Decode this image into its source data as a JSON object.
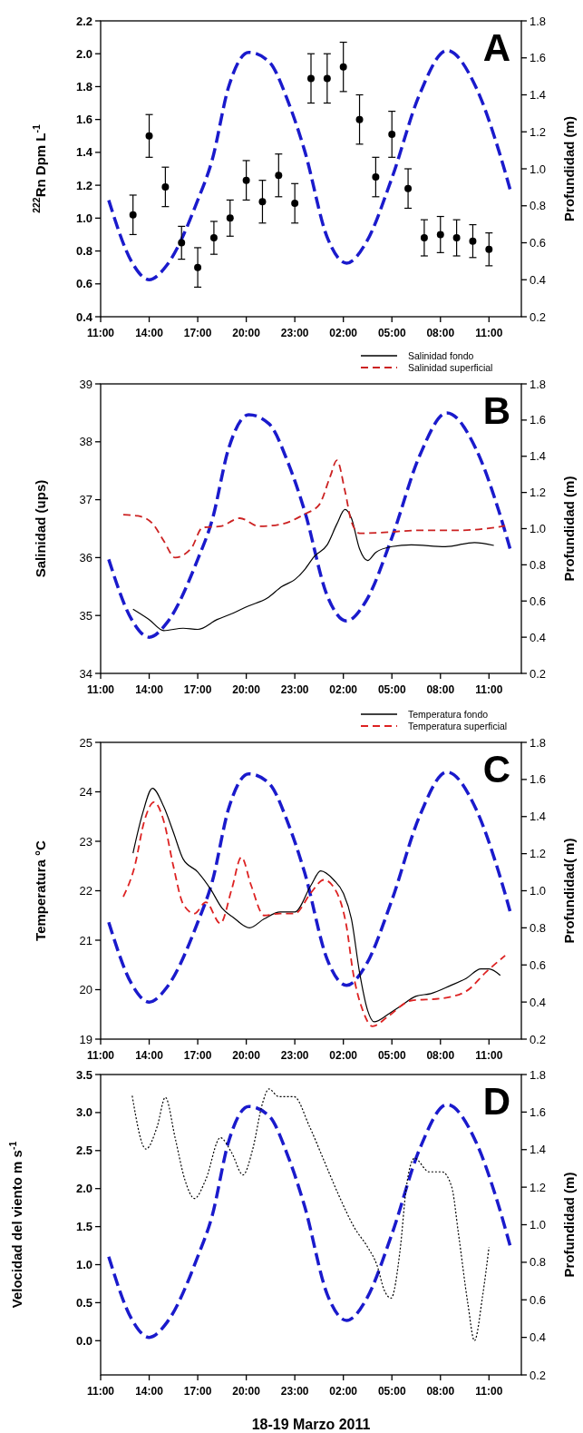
{
  "chart_data": [
    {
      "type": "scatter",
      "title": "A",
      "ylabel": "$^{222}$Rn Dpm L$^{-1}$",
      "y2label": "Profundidad (m)",
      "xlim": [
        "2011-03-18T11:00",
        "2011-03-19T13:00"
      ],
      "xticks": [
        {
          "value": "2011-03-18T11:00",
          "label": "11:00"
        },
        {
          "value": "2011-03-18T14:00",
          "label": "14:00"
        },
        {
          "value": "2011-03-18T17:00",
          "label": "17:00"
        },
        {
          "value": "2011-03-18T20:00",
          "label": "20:00"
        },
        {
          "value": "2011-03-18T23:00",
          "label": "23:00"
        },
        {
          "value": "2011-03-19T02:00",
          "label": "02:00"
        },
        {
          "value": "2011-03-19T05:00",
          "label": "05:00"
        },
        {
          "value": "2011-03-19T08:00",
          "label": "08:00"
        },
        {
          "value": "2011-03-19T11:00",
          "label": "11:00"
        }
      ],
      "ylim": [
        0.4,
        2.2
      ],
      "yticks": [
        {
          "value": 0.4,
          "label": "0.4"
        },
        {
          "value": 0.6,
          "label": "0.6"
        },
        {
          "value": 0.8,
          "label": "0.8"
        },
        {
          "value": 1,
          "label": "1.0"
        },
        {
          "value": 1.2,
          "label": "1.2"
        },
        {
          "value": 1.4,
          "label": "1.4"
        },
        {
          "value": 1.6,
          "label": "1.6"
        },
        {
          "value": 1.8,
          "label": "1.8"
        },
        {
          "value": 2,
          "label": "2.0"
        },
        {
          "value": 2.2,
          "label": "2.2"
        }
      ],
      "y2lim": [
        0.2,
        1.8
      ],
      "y2ticks": [
        {
          "value": 0.2,
          "label": "0.2"
        },
        {
          "value": 0.4,
          "label": "0.4"
        },
        {
          "value": 0.6,
          "label": "0.6"
        },
        {
          "value": 0.8,
          "label": "0.8"
        },
        {
          "value": 1,
          "label": "1.0"
        },
        {
          "value": 1.2,
          "label": "1.2"
        },
        {
          "value": 1.4,
          "label": "1.4"
        },
        {
          "value": 1.6,
          "label": "1.6"
        },
        {
          "value": 1.8,
          "label": "1.8"
        }
      ],
      "series": [
        {
          "color": "#000000",
          "marker": "circle",
          "x": [
            "2011-03-18T13:00",
            "2011-03-18T14:00",
            "2011-03-18T15:00",
            "2011-03-18T16:00",
            "2011-03-18T17:00",
            "2011-03-18T18:00",
            "2011-03-18T19:00",
            "2011-03-18T20:00",
            "2011-03-18T21:00",
            "2011-03-18T22:00",
            "2011-03-18T23:00",
            "2011-03-19T00:00",
            "2011-03-19T01:00",
            "2011-03-19T02:00",
            "2011-03-19T03:00",
            "2011-03-19T04:00",
            "2011-03-19T05:00",
            "2011-03-19T06:00",
            "2011-03-19T07:00",
            "2011-03-19T08:00",
            "2011-03-19T09:00",
            "2011-03-19T10:00",
            "2011-03-19T11:00"
          ],
          "values": [
            1.02,
            1.5,
            1.19,
            0.85,
            0.7,
            0.88,
            1.0,
            1.23,
            1.1,
            1.26,
            1.09,
            1.85,
            1.85,
            1.92,
            1.6,
            1.25,
            1.51,
            1.18,
            0.88,
            0.9,
            0.88,
            0.86,
            0.81
          ],
          "errors": [
            0.12,
            0.13,
            0.12,
            0.1,
            0.12,
            0.1,
            0.11,
            0.12,
            0.13,
            0.13,
            0.12,
            0.15,
            0.15,
            0.15,
            0.15,
            0.12,
            0.14,
            0.12,
            0.11,
            0.11,
            0.11,
            0.1,
            0.1
          ]
        },
        {
          "type": "line",
          "axis": "y2",
          "color": "#1a1acc",
          "line_style": "dashed",
          "x": [
            "2011-03-18T11:30",
            "2011-03-18T12:54",
            "2011-03-18T14:00",
            "2011-03-18T15:06",
            "2011-03-18T17:00",
            "2011-03-18T17:54",
            "2011-03-18T18:54",
            "2011-03-18T20:09",
            "2011-03-18T21:24",
            "2011-03-18T22:36",
            "2011-03-18T23:36",
            "2011-03-19T01:00",
            "2011-03-19T02:12",
            "2011-03-19T03:24",
            "2011-03-19T05:00",
            "2011-03-19T06:42",
            "2011-03-19T08:24",
            "2011-03-19T10:12",
            "2011-03-19T11:36",
            "2011-03-19T12:18"
          ],
          "values": [
            0.83,
            0.5,
            0.4,
            0.48,
            0.83,
            1.05,
            1.44,
            1.63,
            1.58,
            1.36,
            1.1,
            0.63,
            0.49,
            0.6,
            0.95,
            1.4,
            1.64,
            1.44,
            1.1,
            0.89
          ]
        }
      ]
    },
    {
      "type": "line",
      "title": "B",
      "ylabel": "Salinidad (ups)",
      "y2label": "Profundidad (m)",
      "xlim": [
        "2011-03-18T11:00",
        "2011-03-19T13:00"
      ],
      "legend": "top right",
      "xticks": [
        {
          "value": "2011-03-18T11:00",
          "label": "11:00"
        },
        {
          "value": "2011-03-18T14:00",
          "label": "14:00"
        },
        {
          "value": "2011-03-18T17:00",
          "label": "17:00"
        },
        {
          "value": "2011-03-18T20:00",
          "label": "20:00"
        },
        {
          "value": "2011-03-18T23:00",
          "label": "23:00"
        },
        {
          "value": "2011-03-19T02:00",
          "label": "02:00"
        },
        {
          "value": "2011-03-19T05:00",
          "label": "05:00"
        },
        {
          "value": "2011-03-19T08:00",
          "label": "08:00"
        },
        {
          "value": "2011-03-19T11:00",
          "label": "11:00"
        }
      ],
      "ylim": [
        34,
        39
      ],
      "yticks": [
        34,
        35,
        36,
        37,
        38,
        39
      ],
      "y2lim": [
        0.2,
        1.8
      ],
      "y2ticks": [
        {
          "value": 0.2,
          "label": "0.2"
        },
        {
          "value": 0.4,
          "label": "0.4"
        },
        {
          "value": 0.6,
          "label": "0.6"
        },
        {
          "value": 0.8,
          "label": "0.8"
        },
        {
          "value": 1,
          "label": "1.0"
        },
        {
          "value": 1.2,
          "label": "1.2"
        },
        {
          "value": 1.4,
          "label": "1.4"
        },
        {
          "value": 1.6,
          "label": "1.6"
        },
        {
          "value": 1.8,
          "label": "1.8"
        }
      ],
      "series": [
        {
          "name": "Salinidad fondo",
          "color": "#000000",
          "line_style": "solid",
          "x": [
            "2011-03-18T13:00",
            "2011-03-18T14:00",
            "2011-03-18T14:54",
            "2011-03-18T16:06",
            "2011-03-18T17:00",
            "2011-03-18T18:12",
            "2011-03-18T19:06",
            "2011-03-18T20:06",
            "2011-03-18T21:18",
            "2011-03-18T22:12",
            "2011-03-18T23:00",
            "2011-03-18T23:36",
            "2011-03-19T00:12",
            "2011-03-19T01:00",
            "2011-03-19T01:36",
            "2011-03-19T02:06",
            "2011-03-19T02:30",
            "2011-03-19T03:00",
            "2011-03-19T03:30",
            "2011-03-19T04:00",
            "2011-03-19T05:00",
            "2011-03-19T06:12",
            "2011-03-19T08:18",
            "2011-03-19T10:06",
            "2011-03-19T11:18"
          ],
          "values": [
            35.11,
            34.93,
            34.74,
            34.78,
            34.76,
            34.93,
            35.03,
            35.16,
            35.3,
            35.5,
            35.62,
            35.79,
            36.02,
            36.22,
            36.58,
            36.83,
            36.68,
            36.15,
            35.95,
            36.09,
            36.19,
            36.22,
            36.19,
            36.26,
            36.21
          ]
        },
        {
          "name": "Salinidad superficial",
          "color": "#cc2222",
          "line_style": "dashed",
          "x": [
            "2011-03-18T12:24",
            "2011-03-18T13:18",
            "2011-03-18T14:12",
            "2011-03-18T14:54",
            "2011-03-18T15:36",
            "2011-03-18T16:36",
            "2011-03-18T17:18",
            "2011-03-18T18:24",
            "2011-03-18T19:36",
            "2011-03-18T20:48",
            "2011-03-18T22:12",
            "2011-03-18T23:36",
            "2011-03-19T00:30",
            "2011-03-19T01:12",
            "2011-03-19T01:36",
            "2011-03-19T02:06",
            "2011-03-19T02:30",
            "2011-03-19T03:00",
            "2011-03-19T04:18",
            "2011-03-19T06:36",
            "2011-03-19T09:00",
            "2011-03-19T10:48",
            "2011-03-19T12:00"
          ],
          "values": [
            36.74,
            36.72,
            36.59,
            36.29,
            36.0,
            36.16,
            36.52,
            36.54,
            36.68,
            36.54,
            36.58,
            36.75,
            36.91,
            37.41,
            37.68,
            37.15,
            36.62,
            36.42,
            36.43,
            36.47,
            36.47,
            36.5,
            36.55
          ]
        },
        {
          "axis": "y2",
          "color": "#1a1acc",
          "line_style": "dashed",
          "x": [
            "2011-03-18T11:30",
            "2011-03-18T12:54",
            "2011-03-18T14:00",
            "2011-03-18T15:06",
            "2011-03-18T17:00",
            "2011-03-18T17:54",
            "2011-03-18T18:54",
            "2011-03-18T20:09",
            "2011-03-18T21:24",
            "2011-03-18T22:36",
            "2011-03-18T23:36",
            "2011-03-19T01:00",
            "2011-03-19T02:12",
            "2011-03-19T03:24",
            "2011-03-19T05:00",
            "2011-03-19T06:42",
            "2011-03-19T08:24",
            "2011-03-19T10:12",
            "2011-03-19T11:36",
            "2011-03-19T12:18"
          ],
          "values": [
            0.83,
            0.5,
            0.4,
            0.48,
            0.83,
            1.05,
            1.44,
            1.63,
            1.58,
            1.36,
            1.1,
            0.63,
            0.49,
            0.6,
            0.95,
            1.4,
            1.64,
            1.44,
            1.1,
            0.89
          ]
        }
      ]
    },
    {
      "type": "line",
      "title": "C",
      "ylabel": "Temperatura °C",
      "y2label": "Profundidad( m)",
      "xlim": [
        "2011-03-18T11:00",
        "2011-03-19T13:00"
      ],
      "legend": "top right",
      "xticks": [
        {
          "value": "2011-03-18T11:00",
          "label": "11:00"
        },
        {
          "value": "2011-03-18T14:00",
          "label": "14:00"
        },
        {
          "value": "2011-03-18T17:00",
          "label": "17:00"
        },
        {
          "value": "2011-03-18T20:00",
          "label": "20:00"
        },
        {
          "value": "2011-03-18T23:00",
          "label": "23:00"
        },
        {
          "value": "2011-03-19T02:00",
          "label": "02:00"
        },
        {
          "value": "2011-03-19T05:00",
          "label": "05:00"
        },
        {
          "value": "2011-03-19T08:00",
          "label": "08:00"
        },
        {
          "value": "2011-03-19T11:00",
          "label": "11:00"
        }
      ],
      "ylim": [
        19,
        25
      ],
      "yticks": [
        19,
        20,
        21,
        22,
        23,
        24,
        25
      ],
      "y2lim": [
        0.2,
        1.8
      ],
      "y2ticks": [
        {
          "value": 0.2,
          "label": "0.2"
        },
        {
          "value": 0.4,
          "label": "0.4"
        },
        {
          "value": 0.6,
          "label": "0.6"
        },
        {
          "value": 0.8,
          "label": "0.8"
        },
        {
          "value": 1,
          "label": "1.0"
        },
        {
          "value": 1.2,
          "label": "1.2"
        },
        {
          "value": 1.4,
          "label": "1.4"
        },
        {
          "value": 1.6,
          "label": "1.6"
        },
        {
          "value": 1.8,
          "label": "1.8"
        }
      ],
      "series": [
        {
          "name": "Temperatura fondo",
          "color": "#000000",
          "line_style": "solid",
          "x": [
            "2011-03-18T13:00",
            "2011-03-18T13:36",
            "2011-03-18T14:12",
            "2011-03-18T14:54",
            "2011-03-18T15:30",
            "2011-03-18T16:06",
            "2011-03-18T17:00",
            "2011-03-18T17:48",
            "2011-03-18T18:30",
            "2011-03-18T19:12",
            "2011-03-18T20:12",
            "2011-03-18T21:06",
            "2011-03-18T22:06",
            "2011-03-18T23:00",
            "2011-03-19T00:00",
            "2011-03-19T00:36",
            "2011-03-19T01:24",
            "2011-03-19T02:00",
            "2011-03-19T02:30",
            "2011-03-19T03:00",
            "2011-03-19T03:30",
            "2011-03-19T03:54",
            "2011-03-19T04:48",
            "2011-03-19T05:30",
            "2011-03-19T06:30",
            "2011-03-19T07:24",
            "2011-03-19T08:36",
            "2011-03-19T09:36",
            "2011-03-19T10:30",
            "2011-03-19T11:00",
            "2011-03-19T11:42"
          ],
          "values": [
            22.76,
            23.57,
            24.07,
            23.7,
            23.18,
            22.64,
            22.38,
            22.03,
            21.65,
            21.46,
            21.25,
            21.43,
            21.57,
            21.57,
            22.11,
            22.4,
            22.22,
            21.95,
            21.43,
            20.35,
            19.58,
            19.35,
            19.51,
            19.66,
            19.87,
            19.92,
            20.08,
            20.23,
            20.42,
            20.42,
            20.29
          ]
        },
        {
          "name": "Temperatura superficial",
          "color": "#dd2222",
          "line_style": "dashed",
          "x": [
            "2011-03-18T12:24",
            "2011-03-18T13:06",
            "2011-03-18T13:42",
            "2011-03-18T14:18",
            "2011-03-18T14:54",
            "2011-03-18T15:30",
            "2011-03-18T16:06",
            "2011-03-18T16:48",
            "2011-03-18T17:30",
            "2011-03-18T18:24",
            "2011-03-18T19:06",
            "2011-03-18T19:42",
            "2011-03-18T20:18",
            "2011-03-18T21:06",
            "2011-03-18T22:06",
            "2011-03-18T23:00",
            "2011-03-19T00:00",
            "2011-03-19T00:48",
            "2011-03-19T01:36",
            "2011-03-19T02:12",
            "2011-03-19T02:36",
            "2011-03-19T03:12",
            "2011-03-19T03:48",
            "2011-03-19T04:48",
            "2011-03-19T06:12",
            "2011-03-19T08:00",
            "2011-03-19T09:36",
            "2011-03-19T10:48",
            "2011-03-19T12:00"
          ],
          "values": [
            21.88,
            22.49,
            23.41,
            23.79,
            23.41,
            22.49,
            21.73,
            21.54,
            21.77,
            21.34,
            22.03,
            22.68,
            22.11,
            21.5,
            21.54,
            21.54,
            21.96,
            22.22,
            21.96,
            21.27,
            20.35,
            19.58,
            19.26,
            19.47,
            19.78,
            19.82,
            19.97,
            20.35,
            20.69
          ]
        },
        {
          "axis": "y2",
          "color": "#1a1acc",
          "line_style": "dashed",
          "x": [
            "2011-03-18T11:30",
            "2011-03-18T12:54",
            "2011-03-18T14:00",
            "2011-03-18T15:06",
            "2011-03-18T17:00",
            "2011-03-18T17:54",
            "2011-03-18T18:54",
            "2011-03-18T20:09",
            "2011-03-18T21:24",
            "2011-03-18T22:36",
            "2011-03-18T23:36",
            "2011-03-19T01:00",
            "2011-03-19T02:12",
            "2011-03-19T03:24",
            "2011-03-19T05:00",
            "2011-03-19T06:42",
            "2011-03-19T08:24",
            "2011-03-19T10:12",
            "2011-03-19T11:36",
            "2011-03-19T12:18"
          ],
          "values": [
            0.83,
            0.5,
            0.4,
            0.48,
            0.83,
            1.05,
            1.44,
            1.63,
            1.58,
            1.36,
            1.1,
            0.63,
            0.49,
            0.6,
            0.95,
            1.4,
            1.64,
            1.44,
            1.1,
            0.89
          ]
        }
      ]
    },
    {
      "type": "line",
      "title": "D",
      "ylabel": "Velocidad del viento  m s$^{-1}$",
      "y2label": "Profundidad  (m)",
      "xlabel": "18-19 Marzo 2011",
      "xlim": [
        "2011-03-18T11:00",
        "2011-03-19T13:00"
      ],
      "xticks": [
        {
          "value": "2011-03-18T11:00",
          "label": "11:00"
        },
        {
          "value": "2011-03-18T14:00",
          "label": "14:00"
        },
        {
          "value": "2011-03-18T17:00",
          "label": "17:00"
        },
        {
          "value": "2011-03-18T20:00",
          "label": "20:00"
        },
        {
          "value": "2011-03-18T23:00",
          "label": "23:00"
        },
        {
          "value": "2011-03-19T02:00",
          "label": "02:00"
        },
        {
          "value": "2011-03-19T05:00",
          "label": "05:00"
        },
        {
          "value": "2011-03-19T08:00",
          "label": "08:00"
        },
        {
          "value": "2011-03-19T11:00",
          "label": "11:00"
        }
      ],
      "ylim": [
        -0.45,
        3.5
      ],
      "yticks": [
        {
          "value": 0,
          "label": "0.0"
        },
        {
          "value": 0.5,
          "label": "0.5"
        },
        {
          "value": 1,
          "label": "1.0"
        },
        {
          "value": 1.5,
          "label": "1.5"
        },
        {
          "value": 2,
          "label": "2.0"
        },
        {
          "value": 2.5,
          "label": "2.5"
        },
        {
          "value": 3,
          "label": "3.0"
        },
        {
          "value": 3.5,
          "label": "3.5"
        }
      ],
      "y2lim": [
        0.2,
        1.8
      ],
      "y2ticks": [
        {
          "value": 0.2,
          "label": "0.2"
        },
        {
          "value": 0.4,
          "label": "0.4"
        },
        {
          "value": 0.6,
          "label": "0.6"
        },
        {
          "value": 0.8,
          "label": "0.8"
        },
        {
          "value": 1,
          "label": "1.0"
        },
        {
          "value": 1.2,
          "label": "1.2"
        },
        {
          "value": 1.4,
          "label": "1.4"
        },
        {
          "value": 1.6,
          "label": "1.6"
        },
        {
          "value": 1.8,
          "label": "1.8"
        }
      ],
      "series": [
        {
          "color": "#000000",
          "line_style": "dotted",
          "x": [
            "2011-03-18T12:57",
            "2011-03-18T13:48",
            "2011-03-18T14:30",
            "2011-03-18T15:00",
            "2011-03-18T15:36",
            "2011-03-18T16:12",
            "2011-03-18T16:48",
            "2011-03-18T17:30",
            "2011-03-18T18:24",
            "2011-03-18T19:06",
            "2011-03-18T19:48",
            "2011-03-18T20:24",
            "2011-03-18T21:00",
            "2011-03-18T21:24",
            "2011-03-18T22:00",
            "2011-03-18T22:57",
            "2011-03-18T23:54",
            "2011-03-19T00:48",
            "2011-03-19T01:42",
            "2011-03-19T02:42",
            "2011-03-19T03:30",
            "2011-03-19T04:06",
            "2011-03-19T04:30",
            "2011-03-19T04:57",
            "2011-03-19T05:30",
            "2011-03-19T05:54",
            "2011-03-19T06:24",
            "2011-03-19T07:18",
            "2011-03-19T08:06",
            "2011-03-19T08:42",
            "2011-03-19T09:06",
            "2011-03-19T09:42",
            "2011-03-19T10:06",
            "2011-03-19T10:36",
            "2011-03-19T11:00"
          ],
          "values": [
            3.22,
            2.52,
            2.82,
            3.2,
            2.67,
            2.12,
            1.87,
            2.12,
            2.67,
            2.47,
            2.18,
            2.52,
            3.12,
            3.31,
            3.21,
            3.21,
            2.82,
            2.37,
            1.92,
            1.48,
            1.23,
            0.98,
            0.68,
            0.56,
            1.18,
            2.03,
            2.4,
            2.22,
            2.22,
            2.02,
            1.43,
            0.48,
            0.0,
            0.58,
            1.23
          ]
        },
        {
          "axis": "y2",
          "color": "#1a1acc",
          "line_style": "dashed",
          "x": [
            "2011-03-18T11:30",
            "2011-03-18T12:54",
            "2011-03-18T14:00",
            "2011-03-18T15:06",
            "2011-03-18T17:00",
            "2011-03-18T17:54",
            "2011-03-18T18:54",
            "2011-03-18T20:09",
            "2011-03-18T21:24",
            "2011-03-18T22:36",
            "2011-03-18T23:36",
            "2011-03-19T01:00",
            "2011-03-19T02:12",
            "2011-03-19T03:24",
            "2011-03-19T05:00",
            "2011-03-19T06:42",
            "2011-03-19T08:24",
            "2011-03-19T10:12",
            "2011-03-19T11:36",
            "2011-03-19T12:18"
          ],
          "values": [
            0.83,
            0.5,
            0.4,
            0.48,
            0.83,
            1.05,
            1.44,
            1.63,
            1.58,
            1.36,
            1.1,
            0.63,
            0.49,
            0.6,
            0.95,
            1.4,
            1.64,
            1.44,
            1.1,
            0.89
          ]
        }
      ]
    }
  ]
}
